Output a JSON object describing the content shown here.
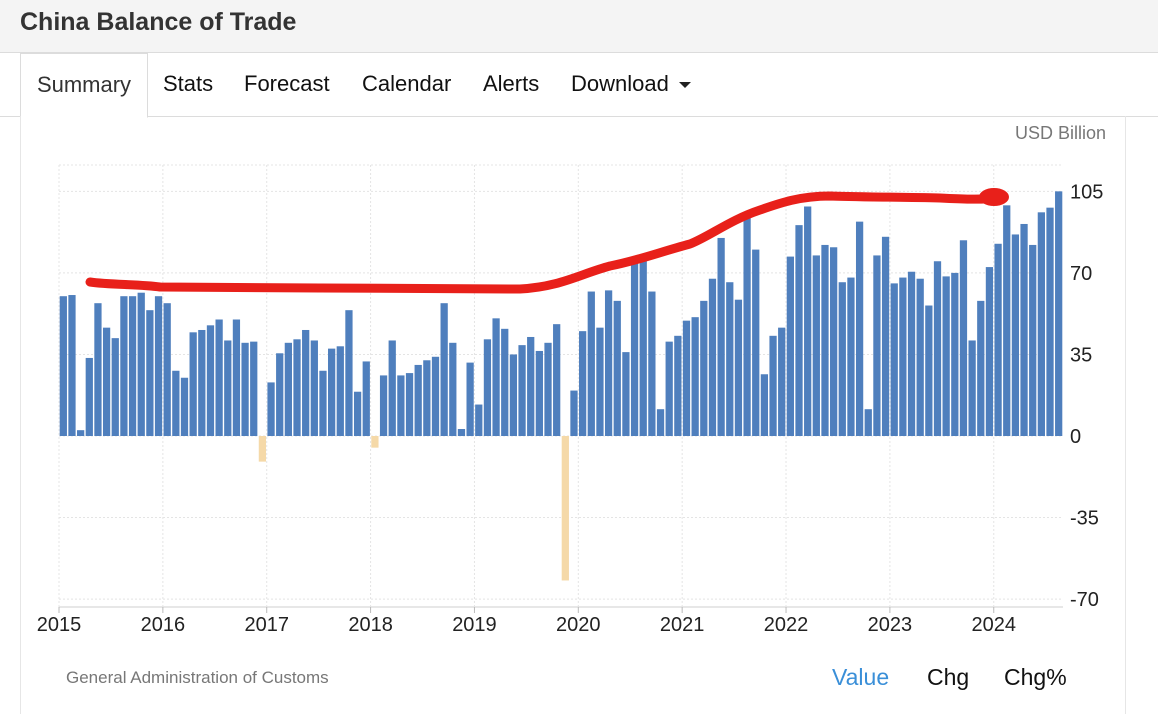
{
  "page": {
    "title": "China Balance of Trade"
  },
  "tabs": [
    {
      "label": "Summary",
      "active": true
    },
    {
      "label": "Stats",
      "active": false
    },
    {
      "label": "Forecast",
      "active": false
    },
    {
      "label": "Calendar",
      "active": false
    },
    {
      "label": "Alerts",
      "active": false
    },
    {
      "label": "Download",
      "active": false,
      "dropdown": true
    }
  ],
  "unit_label": "USD Billion",
  "source": "General Administration of Customs",
  "view_buttons": [
    {
      "label": "Value",
      "active": true
    },
    {
      "label": "Chg",
      "active": false
    },
    {
      "label": "Chg%",
      "active": false
    }
  ],
  "colors": {
    "positive": "#4f7fbd",
    "negative": "#f5d9a8",
    "annotation": "#e8201a",
    "active_link": "#3a8fd8"
  },
  "chart_data": {
    "type": "bar",
    "title": "",
    "xlabel": "",
    "ylabel": "",
    "y_ticks": [
      105,
      70,
      35,
      0,
      -35,
      -70
    ],
    "ylim": [
      -75,
      118
    ],
    "x_ticks": [
      "2015",
      "2016",
      "2017",
      "2018",
      "2019",
      "2020",
      "2021",
      "2022",
      "2023",
      "2024"
    ],
    "grid": true,
    "start": "2015-01",
    "end": "2024-12",
    "values": [
      60,
      60.5,
      2.5,
      33.5,
      57,
      46.5,
      42,
      60,
      60,
      61.5,
      54,
      60,
      57,
      28,
      25,
      44.5,
      45.5,
      47.5,
      50,
      41,
      50,
      40,
      40.5,
      -11,
      23,
      35.5,
      40,
      41.5,
      45.5,
      41,
      28,
      37.5,
      38.5,
      54,
      19,
      32,
      -5,
      26,
      41,
      26,
      27,
      30.5,
      32.5,
      34,
      57,
      40,
      3,
      31.5,
      13.5,
      41.5,
      50.5,
      46,
      35,
      39,
      42.5,
      36.5,
      40,
      48,
      -62,
      19.5,
      45,
      62,
      46.5,
      62.5,
      58,
      36,
      75.5,
      77,
      62,
      11.5,
      40.5,
      43,
      49.5,
      51,
      58,
      67.5,
      85,
      66,
      58.5,
      94,
      80,
      26.5,
      43,
      46.5,
      77,
      90.5,
      98.5,
      77.5,
      82,
      81,
      66,
      68,
      92,
      11.5,
      77.5,
      85.5,
      65.5,
      68,
      70.5,
      67.5,
      56,
      75,
      68.5,
      70,
      84,
      41,
      58,
      72.5,
      82.5,
      99,
      86.5,
      91,
      82,
      96,
      98,
      105
    ]
  }
}
